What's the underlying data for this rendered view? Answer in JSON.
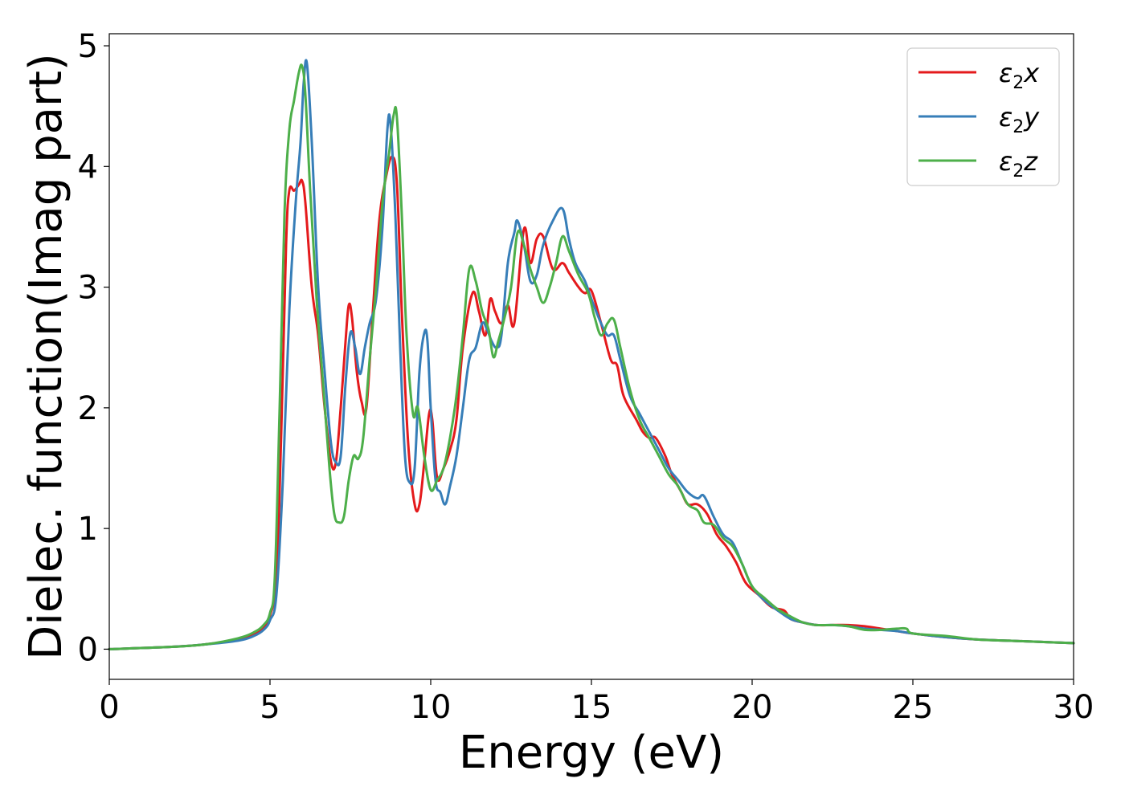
{
  "chart_data": {
    "type": "line",
    "title": "",
    "xlabel": "Energy (eV)",
    "ylabel": "Dielec. function(Imag part)",
    "xlim": [
      0,
      30
    ],
    "ylim": [
      -0.25,
      5.1
    ],
    "xticks": [
      "0",
      "5",
      "10",
      "15",
      "20",
      "25",
      "30"
    ],
    "yticks": [
      "0",
      "1",
      "2",
      "3",
      "4",
      "5"
    ],
    "grid": false,
    "legend_position": "top-right",
    "series": [
      {
        "name": "ε₂x",
        "legend_base": "ε",
        "legend_sub": "2",
        "legend_var": "x",
        "color": "#e41a1c",
        "x": [
          0,
          2,
          3,
          4,
          4.5,
          4.8,
          5.0,
          5.2,
          5.35,
          5.5,
          5.6,
          5.75,
          5.9,
          6.0,
          6.1,
          6.3,
          6.5,
          6.7,
          6.9,
          7.05,
          7.2,
          7.35,
          7.45,
          7.55,
          7.7,
          7.85,
          8.0,
          8.2,
          8.4,
          8.6,
          8.8,
          8.95,
          9.1,
          9.3,
          9.5,
          9.65,
          9.8,
          9.95,
          10.05,
          10.2,
          10.4,
          10.6,
          10.8,
          11.0,
          11.3,
          11.5,
          11.7,
          11.85,
          12.0,
          12.2,
          12.4,
          12.6,
          12.9,
          13.1,
          13.3,
          13.5,
          13.8,
          14.1,
          14.3,
          14.6,
          14.8,
          15.0,
          15.3,
          15.6,
          15.8,
          16.0,
          16.4,
          16.6,
          16.8,
          17.0,
          17.3,
          17.5,
          17.8,
          18.0,
          18.3,
          18.6,
          18.9,
          19.2,
          19.5,
          19.8,
          20.2,
          20.6,
          21.0,
          21.2,
          21.6,
          22.0,
          22.5,
          23.0,
          23.5,
          24.0,
          24.5,
          25.0,
          26.0,
          27.0,
          28.0,
          29.0,
          30.0
        ],
        "values": [
          0.0,
          0.02,
          0.04,
          0.08,
          0.12,
          0.18,
          0.28,
          0.6,
          1.8,
          3.35,
          3.8,
          3.8,
          3.85,
          3.88,
          3.7,
          3.0,
          2.6,
          2.0,
          1.55,
          1.55,
          2.0,
          2.55,
          2.85,
          2.75,
          2.3,
          2.05,
          2.0,
          2.8,
          3.55,
          3.9,
          4.08,
          3.85,
          2.8,
          1.7,
          1.2,
          1.2,
          1.55,
          1.95,
          1.9,
          1.42,
          1.5,
          1.65,
          1.9,
          2.5,
          2.95,
          2.8,
          2.6,
          2.9,
          2.8,
          2.7,
          2.85,
          2.7,
          3.48,
          3.2,
          3.4,
          3.42,
          3.15,
          3.2,
          3.12,
          3.0,
          2.95,
          2.97,
          2.7,
          2.4,
          2.35,
          2.1,
          1.9,
          1.8,
          1.75,
          1.75,
          1.6,
          1.45,
          1.3,
          1.2,
          1.2,
          1.12,
          0.95,
          0.85,
          0.72,
          0.55,
          0.45,
          0.35,
          0.32,
          0.25,
          0.22,
          0.2,
          0.2,
          0.2,
          0.19,
          0.17,
          0.15,
          0.13,
          0.1,
          0.08,
          0.07,
          0.06,
          0.05
        ]
      },
      {
        "name": "ε₂y",
        "legend_base": "ε",
        "legend_sub": "2",
        "legend_var": "y",
        "color": "#377eb8",
        "x": [
          0,
          2,
          3,
          4,
          4.5,
          4.8,
          5.0,
          5.2,
          5.4,
          5.6,
          5.8,
          5.95,
          6.05,
          6.15,
          6.3,
          6.5,
          6.7,
          6.9,
          7.05,
          7.2,
          7.35,
          7.5,
          7.65,
          7.8,
          7.95,
          8.1,
          8.3,
          8.5,
          8.65,
          8.75,
          8.9,
          9.05,
          9.2,
          9.35,
          9.5,
          9.65,
          9.8,
          9.9,
          10.0,
          10.15,
          10.3,
          10.45,
          10.6,
          10.8,
          11.0,
          11.2,
          11.4,
          11.6,
          11.75,
          11.9,
          12.05,
          12.2,
          12.4,
          12.6,
          12.7,
          12.9,
          13.1,
          13.3,
          13.5,
          13.8,
          14.1,
          14.3,
          14.5,
          14.8,
          15.0,
          15.3,
          15.5,
          15.7,
          15.9,
          16.2,
          16.5,
          16.8,
          17.1,
          17.4,
          17.7,
          18.0,
          18.3,
          18.5,
          18.8,
          19.1,
          19.4,
          19.7,
          20.0,
          20.4,
          20.8,
          21.2,
          21.6,
          22.0,
          22.5,
          23.0,
          23.5,
          24.0,
          24.5,
          25.0,
          26.0,
          27.0,
          28.0,
          29.0,
          30.0
        ],
        "values": [
          0.0,
          0.02,
          0.04,
          0.07,
          0.11,
          0.16,
          0.24,
          0.45,
          1.4,
          2.8,
          3.7,
          4.2,
          4.7,
          4.85,
          4.2,
          3.0,
          2.3,
          1.7,
          1.55,
          1.6,
          2.2,
          2.62,
          2.5,
          2.28,
          2.5,
          2.7,
          2.9,
          3.5,
          4.3,
          4.35,
          3.6,
          2.5,
          1.6,
          1.38,
          1.5,
          2.3,
          2.62,
          2.55,
          2.0,
          1.4,
          1.3,
          1.2,
          1.35,
          1.6,
          2.0,
          2.4,
          2.5,
          2.7,
          2.65,
          2.55,
          2.5,
          2.6,
          3.2,
          3.45,
          3.55,
          3.35,
          3.05,
          3.1,
          3.35,
          3.55,
          3.65,
          3.4,
          3.2,
          3.05,
          2.9,
          2.7,
          2.6,
          2.6,
          2.4,
          2.1,
          1.95,
          1.8,
          1.65,
          1.5,
          1.4,
          1.3,
          1.25,
          1.27,
          1.1,
          0.95,
          0.88,
          0.7,
          0.52,
          0.4,
          0.32,
          0.25,
          0.22,
          0.2,
          0.2,
          0.19,
          0.17,
          0.16,
          0.15,
          0.13,
          0.1,
          0.08,
          0.07,
          0.06,
          0.05
        ]
      },
      {
        "name": "ε₂z",
        "legend_base": "ε",
        "legend_sub": "2",
        "legend_var": "z",
        "color": "#4daf4a",
        "x": [
          0,
          2,
          3,
          4,
          4.5,
          4.8,
          5.0,
          5.15,
          5.3,
          5.45,
          5.6,
          5.75,
          5.9,
          6.0,
          6.1,
          6.25,
          6.45,
          6.65,
          6.85,
          7.0,
          7.15,
          7.3,
          7.45,
          7.6,
          7.75,
          7.9,
          8.1,
          8.3,
          8.5,
          8.7,
          8.85,
          8.95,
          9.1,
          9.25,
          9.45,
          9.6,
          9.8,
          10.0,
          10.2,
          10.4,
          10.6,
          10.8,
          11.0,
          11.2,
          11.4,
          11.6,
          11.8,
          11.95,
          12.1,
          12.3,
          12.5,
          12.7,
          12.9,
          13.1,
          13.3,
          13.5,
          13.7,
          13.9,
          14.1,
          14.3,
          14.6,
          14.9,
          15.1,
          15.3,
          15.5,
          15.7,
          15.9,
          16.2,
          16.5,
          16.8,
          17.1,
          17.4,
          17.7,
          18.0,
          18.3,
          18.5,
          18.8,
          19.1,
          19.4,
          19.7,
          20.0,
          20.4,
          20.8,
          21.2,
          21.6,
          22.0,
          22.5,
          23.0,
          23.5,
          24.0,
          24.5,
          24.8,
          25.0,
          26.0,
          27.0,
          28.0,
          29.0,
          30.0
        ],
        "values": [
          0.0,
          0.02,
          0.04,
          0.09,
          0.14,
          0.2,
          0.3,
          0.6,
          2.0,
          3.6,
          4.3,
          4.55,
          4.78,
          4.83,
          4.6,
          3.8,
          2.9,
          2.2,
          1.5,
          1.12,
          1.05,
          1.1,
          1.4,
          1.6,
          1.58,
          1.75,
          2.4,
          3.0,
          3.7,
          4.1,
          4.43,
          4.4,
          3.6,
          2.6,
          1.95,
          2.0,
          1.6,
          1.32,
          1.4,
          1.5,
          1.75,
          2.1,
          2.6,
          3.15,
          3.05,
          2.8,
          2.65,
          2.42,
          2.55,
          2.75,
          3.0,
          3.45,
          3.35,
          3.15,
          3.0,
          2.87,
          3.0,
          3.2,
          3.42,
          3.3,
          3.1,
          2.95,
          2.75,
          2.6,
          2.7,
          2.73,
          2.5,
          2.15,
          1.9,
          1.75,
          1.6,
          1.45,
          1.35,
          1.2,
          1.15,
          1.05,
          1.03,
          0.92,
          0.85,
          0.7,
          0.52,
          0.42,
          0.33,
          0.27,
          0.22,
          0.2,
          0.2,
          0.19,
          0.16,
          0.16,
          0.17,
          0.17,
          0.13,
          0.11,
          0.08,
          0.07,
          0.06,
          0.05
        ]
      }
    ]
  }
}
